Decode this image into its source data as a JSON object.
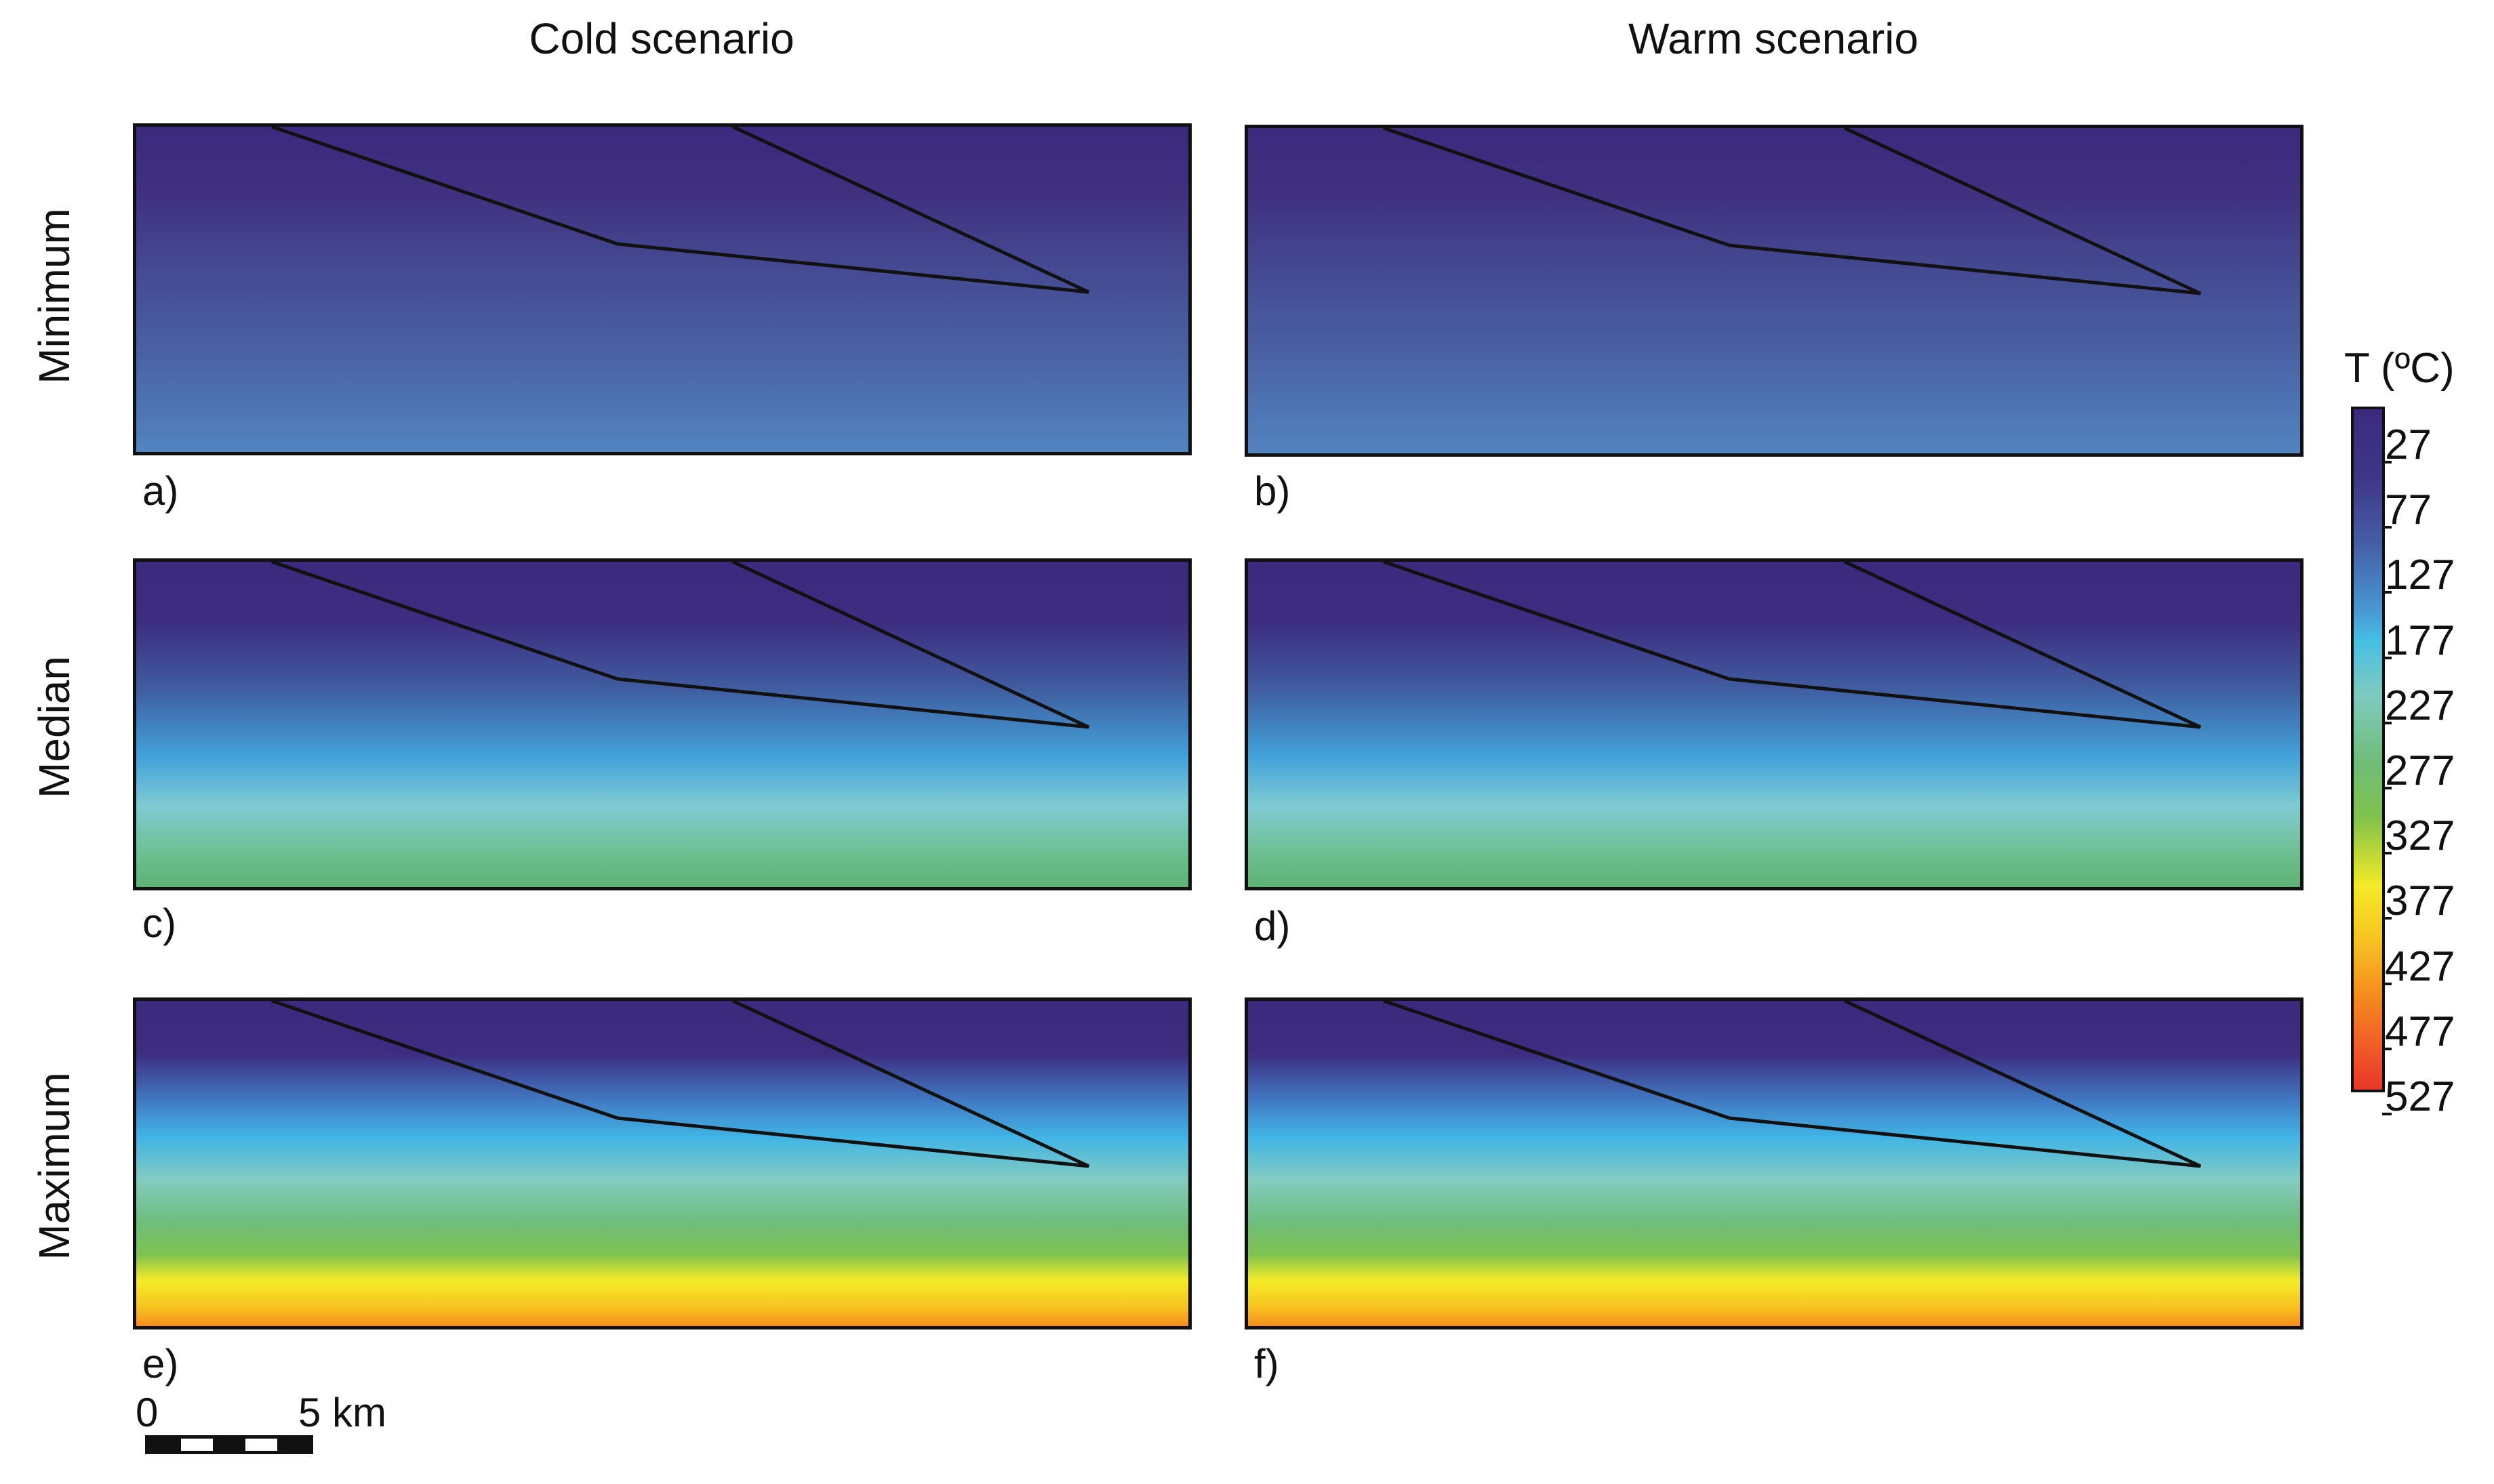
{
  "columns": {
    "cold": "Cold scenario",
    "warm": "Warm scenario"
  },
  "rows": {
    "minimum": "Minimum",
    "median": "Median",
    "maximum": "Maximum"
  },
  "panels": {
    "a": "a)",
    "b": "b)",
    "c": "c)",
    "d": "d)",
    "e": "e)",
    "f": "f)"
  },
  "legend": {
    "title": "T (ºC)",
    "ticks": [
      "27",
      "77",
      "127",
      "177",
      "227",
      "277",
      "327",
      "377",
      "427",
      "477",
      "527"
    ],
    "colors": {
      "low": "#3b2a7e",
      "mid": "#46bfe4",
      "green": "#6fbc78",
      "yellow": "#f4ea27",
      "high": "#e8372a"
    }
  },
  "scale_bar": {
    "start": "0",
    "end": "5 km"
  }
}
